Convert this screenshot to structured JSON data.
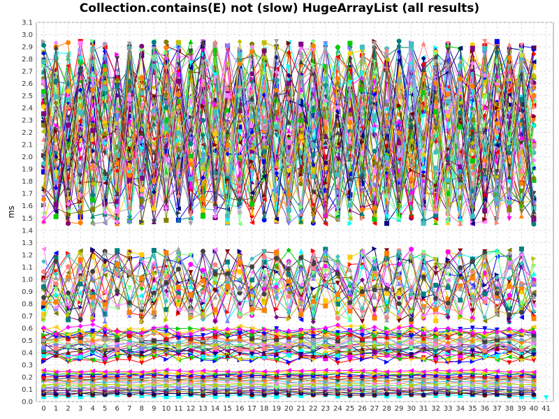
{
  "chart_data": {
    "type": "line",
    "title": "Collection.contains(E) not (slow) HugeArrayList (all results)",
    "xlabel": "",
    "ylabel": "ms",
    "xlim": [
      -0.6,
      41.6
    ],
    "ylim": [
      0.0,
      3.1
    ],
    "x_ticks": [
      0,
      1,
      2,
      3,
      4,
      5,
      6,
      7,
      8,
      9,
      10,
      11,
      12,
      13,
      14,
      15,
      16,
      17,
      18,
      19,
      20,
      21,
      22,
      23,
      24,
      25,
      26,
      27,
      28,
      29,
      30,
      31,
      32,
      33,
      34,
      35,
      36,
      37,
      38,
      39,
      40,
      41
    ],
    "y_ticks": [
      0.0,
      0.1,
      0.2,
      0.3,
      0.4,
      0.5,
      0.6,
      0.7,
      0.8,
      0.9,
      1.0,
      1.1,
      1.2,
      1.3,
      1.4,
      1.5,
      1.6,
      1.7,
      1.8,
      1.9,
      2.0,
      2.1,
      2.2,
      2.3,
      2.4,
      2.5,
      2.6,
      2.7,
      2.8,
      2.9,
      3.0,
      3.1
    ],
    "grid": true,
    "legend": "none",
    "series_groups": [
      {
        "name": "",
        "count": 60,
        "y_range": [
          1.45,
          2.95
        ],
        "x_range": [
          0,
          40
        ]
      },
      {
        "name": "",
        "count": 20,
        "y_range": [
          0.65,
          1.25
        ],
        "x_range": [
          0,
          40
        ]
      },
      {
        "name": "",
        "count": 25,
        "y_range": [
          0.35,
          0.6
        ],
        "x_range": [
          0,
          40
        ]
      },
      {
        "name": "",
        "count": 20,
        "y_range": [
          0.05,
          0.26
        ],
        "x_range": [
          0,
          40
        ]
      }
    ],
    "isolated_points": [
      {
        "x": 41,
        "y": 0.02,
        "color": "#00ffff"
      }
    ]
  },
  "colors": [
    "#ff0000",
    "#0000ff",
    "#00cc00",
    "#ffcc00",
    "#ff00ff",
    "#00ffff",
    "#800000",
    "#000080",
    "#808000",
    "#800080",
    "#008080",
    "#ff8080",
    "#8080ff",
    "#80ff80",
    "#c0c000",
    "#ff80ff",
    "#40c0c0",
    "#ff8000",
    "#404040",
    "#a0a0a0"
  ]
}
